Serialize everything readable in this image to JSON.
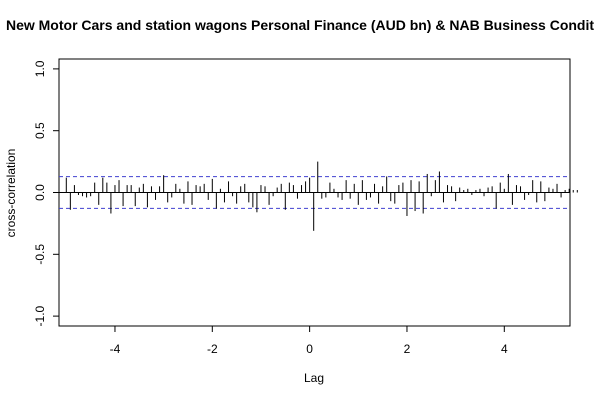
{
  "chart_data": {
    "type": "bar",
    "title": "New Motor Cars and station wagons Personal Finance (AUD bn) & NAB Business Condit",
    "xlabel": "Lag",
    "ylabel": "cross-correlation",
    "xlim": [
      -5.15,
      5.35
    ],
    "ylim": [
      -1.08,
      1.08
    ],
    "xticks": [
      -4,
      -2,
      0,
      2,
      4
    ],
    "xtick_labels": [
      "-4",
      "-2",
      "0",
      "2",
      "4"
    ],
    "yticks": [
      -1.0,
      -0.5,
      0.0,
      0.5,
      1.0
    ],
    "ytick_labels": [
      "-1.0",
      "-0.5",
      "0.0",
      "0.5",
      "1.0"
    ],
    "confidence_limit": 0.128,
    "line_color": "#000000",
    "ci_color": "#4040d0",
    "lag_start": -5.0,
    "lag_step": 0.0833333333,
    "values": [
      0.12,
      -0.14,
      0.06,
      -0.02,
      -0.03,
      -0.04,
      -0.03,
      0.08,
      -0.1,
      0.12,
      0.08,
      -0.17,
      0.06,
      0.1,
      -0.11,
      0.06,
      0.06,
      -0.11,
      0.04,
      0.07,
      -0.12,
      0.05,
      -0.06,
      0.05,
      0.14,
      -0.08,
      -0.04,
      0.07,
      0.03,
      -0.09,
      0.09,
      -0.1,
      0.06,
      0.05,
      0.07,
      -0.06,
      0.11,
      -0.13,
      0.03,
      -0.08,
      0.09,
      -0.03,
      -0.09,
      0.05,
      0.07,
      -0.08,
      -0.12,
      -0.16,
      0.06,
      0.05,
      -0.1,
      -0.03,
      0.04,
      0.07,
      -0.14,
      0.08,
      0.06,
      -0.05,
      0.06,
      0.09,
      0.12,
      -0.31,
      0.25,
      -0.05,
      -0.04,
      0.08,
      0.03,
      -0.04,
      -0.06,
      0.1,
      -0.05,
      0.07,
      -0.1,
      0.1,
      -0.06,
      -0.04,
      0.07,
      -0.09,
      0.05,
      0.13,
      -0.07,
      -0.09,
      0.06,
      0.08,
      -0.19,
      0.1,
      -0.15,
      0.09,
      -0.17,
      0.15,
      -0.03,
      0.1,
      0.17,
      -0.08,
      0.06,
      0.05,
      -0.07,
      0.04,
      0.02,
      0.03,
      -0.02,
      0.02,
      0.03,
      -0.03,
      0.04,
      0.05,
      -0.13,
      0.08,
      0.03,
      0.15,
      -0.1,
      0.06,
      0.05,
      -0.06,
      -0.02,
      0.1,
      -0.08,
      0.09,
      -0.07,
      0.04,
      0.03,
      0.07,
      -0.04,
      0.02,
      0.03,
      0.02,
      0.02
    ]
  }
}
